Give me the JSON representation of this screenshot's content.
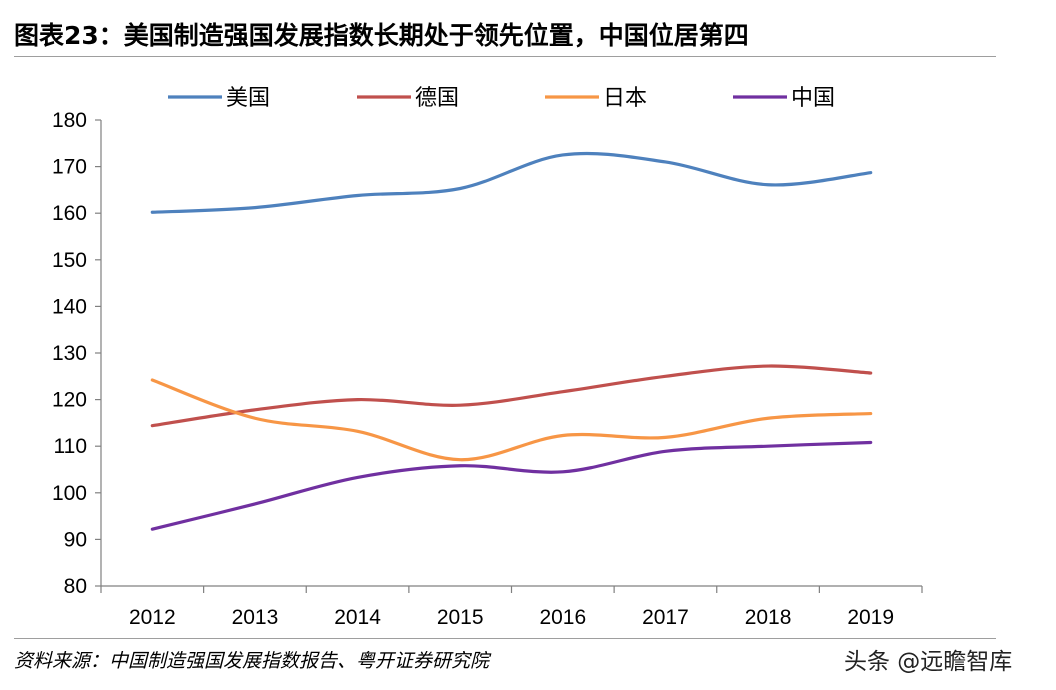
{
  "title": "图表23：美国制造强国发展指数长期处于领先位置，中国位居第四",
  "source": "资料来源：中国制造强国发展指数报告、粤开证券研究院",
  "watermark": "头条 @远瞻智库",
  "chart_data": {
    "type": "line",
    "title": "图表23：美国制造强国发展指数长期处于领先位置，中国位居第四",
    "xlabel": "",
    "ylabel": "",
    "categories": [
      "2012",
      "2013",
      "2014",
      "2015",
      "2016",
      "2017",
      "2018",
      "2019"
    ],
    "ylim": [
      80,
      180
    ],
    "yticks": [
      80,
      90,
      100,
      110,
      120,
      130,
      140,
      150,
      160,
      170,
      180
    ],
    "grid": false,
    "legend_position": "top",
    "series": [
      {
        "name": "美国",
        "color": "#4e81bd",
        "values": [
          160.2,
          161.2,
          163.8,
          165.3,
          172.5,
          171.0,
          166.1,
          168.7
        ]
      },
      {
        "name": "德国",
        "color": "#c0504d",
        "values": [
          114.4,
          117.8,
          120.0,
          118.8,
          121.7,
          125.0,
          127.2,
          125.7
        ]
      },
      {
        "name": "日本",
        "color": "#f79646",
        "values": [
          124.2,
          116.0,
          113.2,
          107.1,
          112.3,
          111.9,
          116.0,
          117.0
        ]
      },
      {
        "name": "中国",
        "color": "#7030a0",
        "values": [
          92.2,
          97.6,
          103.3,
          105.8,
          104.5,
          108.9,
          110.0,
          110.8
        ]
      }
    ]
  }
}
